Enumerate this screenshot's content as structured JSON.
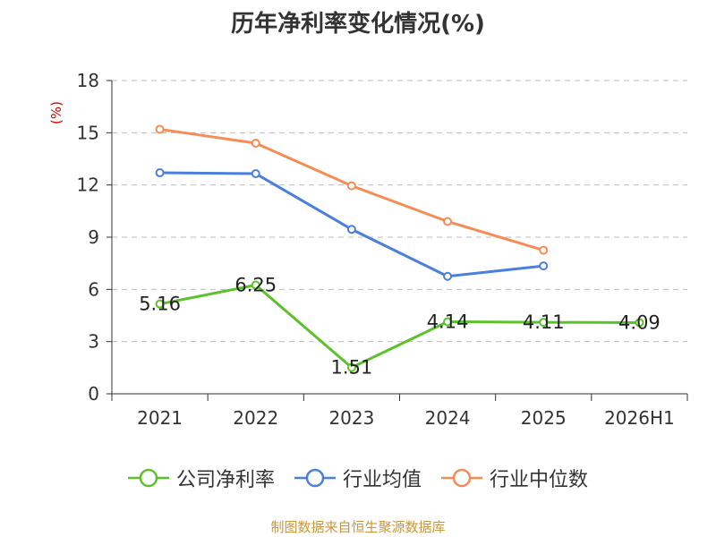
{
  "title": "历年净利率变化情况(%)",
  "source_text": "制图数据来自恒生聚源数据库",
  "colors": {
    "company": "#5cc12b",
    "industry_avg": "#4a7fdc",
    "industry_median": "#f58c56",
    "ylabel": "#cc0000",
    "grid": "#bdbdbd",
    "axis": "#333333",
    "source": "#c8963c"
  },
  "chart_data": {
    "type": "line",
    "title": "历年净利率变化情况(%)",
    "xlabel": "",
    "ylabel": "(%)",
    "categories": [
      "2021",
      "2022",
      "2023",
      "2024",
      "2025",
      "2026H1"
    ],
    "ylim": [
      0,
      18
    ],
    "yticks": [
      0,
      3,
      6,
      9,
      12,
      15,
      18
    ],
    "grid": true,
    "legend_position": "bottom",
    "series": [
      {
        "name": "公司净利率",
        "color": "#5cc12b",
        "values": [
          5.16,
          6.25,
          1.51,
          4.14,
          4.11,
          4.09
        ],
        "labels": [
          "5.16",
          "6.25",
          "1.51",
          "4.14",
          "4.11",
          "4.09"
        ]
      },
      {
        "name": "行业均值",
        "color": "#4a7fdc",
        "values": [
          12.7,
          12.65,
          9.45,
          6.75,
          7.35,
          null
        ]
      },
      {
        "name": "行业中位数",
        "color": "#f58c56",
        "values": [
          15.2,
          14.4,
          11.95,
          9.9,
          8.25,
          null
        ]
      }
    ]
  }
}
